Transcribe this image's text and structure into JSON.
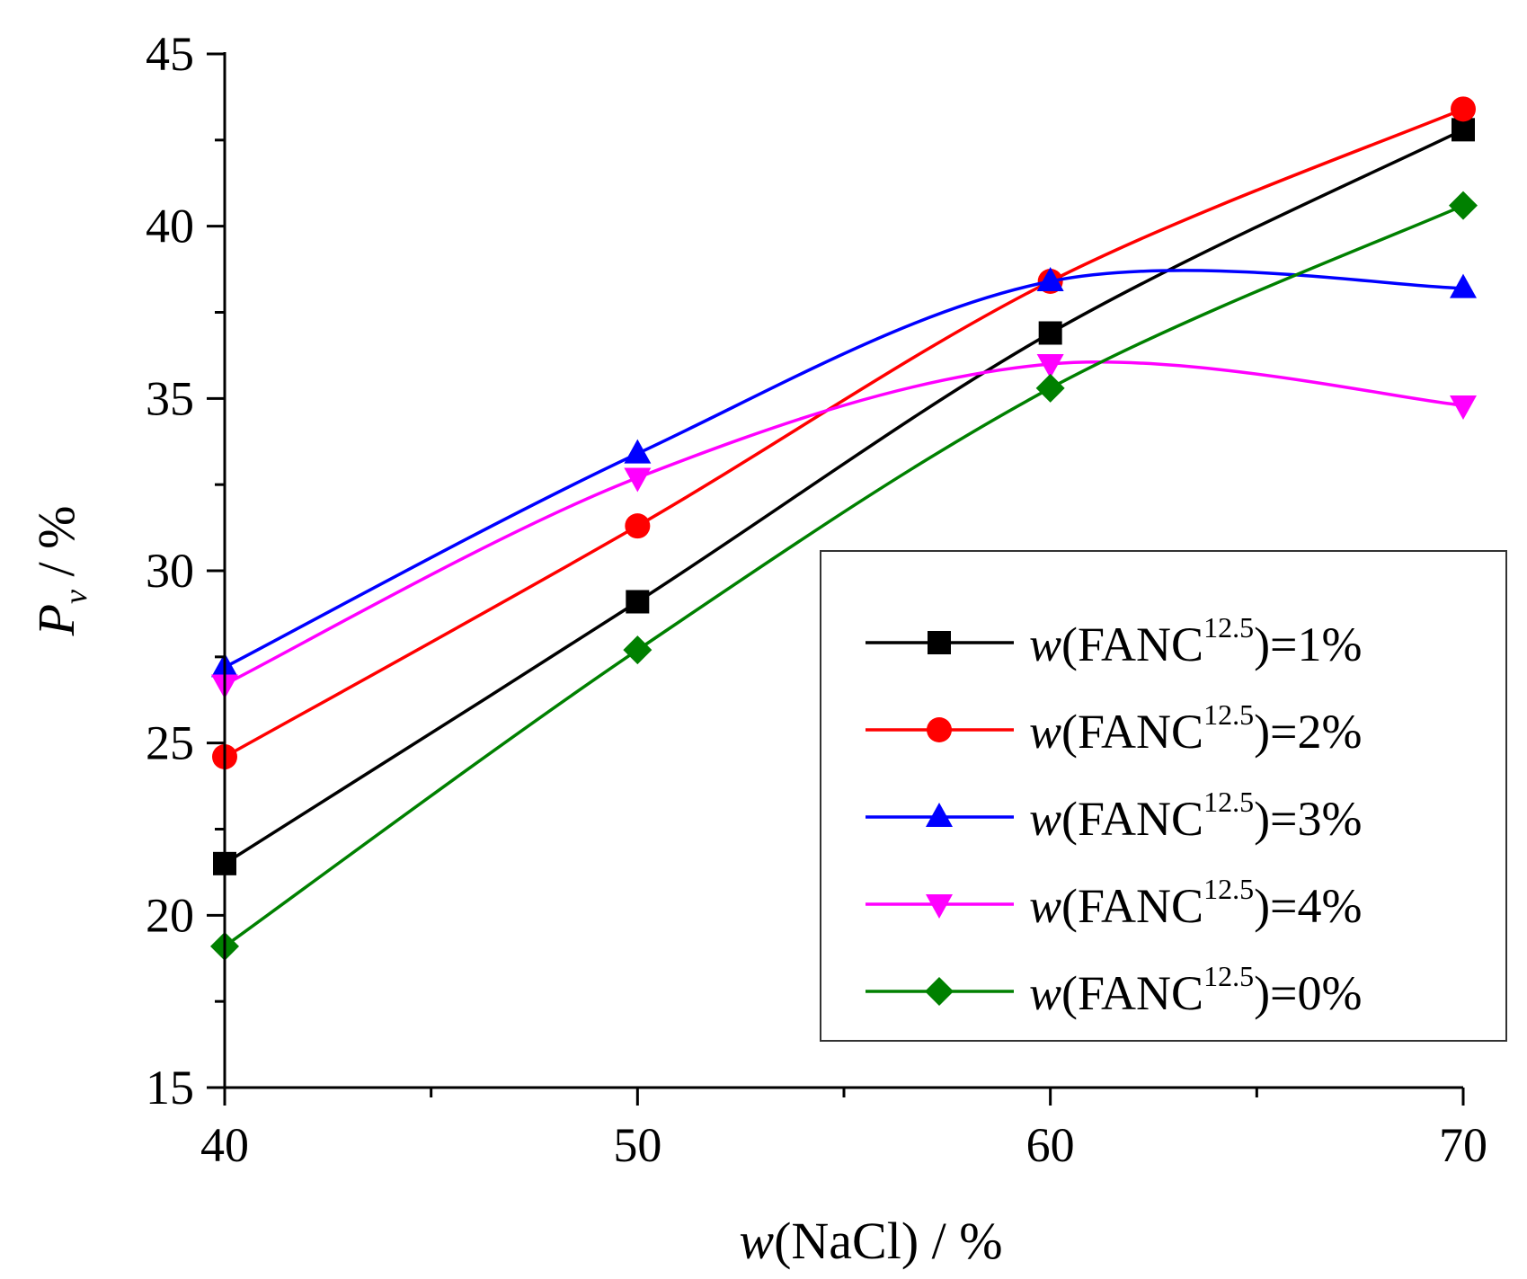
{
  "chart_data": {
    "type": "line",
    "title": "",
    "xlabel": {
      "italic": "w",
      "rest": "(NaCl) / %"
    },
    "ylabel": {
      "italic": "P",
      "sub": "v",
      "rest": " / %"
    },
    "xlim": [
      40,
      70
    ],
    "ylim": [
      15,
      45
    ],
    "x_ticks": [
      40,
      50,
      60,
      70
    ],
    "x_tick_labels": [
      "40",
      "50",
      "60",
      "70"
    ],
    "y_ticks": [
      15,
      20,
      25,
      30,
      35,
      40,
      45
    ],
    "y_tick_labels": [
      "15",
      "20",
      "25",
      "30",
      "35",
      "40",
      "45"
    ],
    "grid": false,
    "legend_position": "bottom-right",
    "x": [
      40,
      50,
      60,
      70
    ],
    "series": [
      {
        "name": "w(FANC12.5)=1%",
        "legend": {
          "italic": "w",
          "pre": "(FANC",
          "sup": "12.5",
          "post": ")=1%"
        },
        "color": "#000000",
        "marker": "square",
        "values": [
          21.5,
          29.1,
          36.9,
          42.8
        ]
      },
      {
        "name": "w(FANC12.5)=2%",
        "legend": {
          "italic": "w",
          "pre": "(FANC",
          "sup": "12.5",
          "post": ")=2%"
        },
        "color": "#ff0000",
        "marker": "circle",
        "values": [
          24.6,
          31.3,
          38.4,
          43.4
        ]
      },
      {
        "name": "w(FANC12.5)=3%",
        "legend": {
          "italic": "w",
          "pre": "(FANC",
          "sup": "12.5",
          "post": ")=3%"
        },
        "color": "#0000ff",
        "marker": "triangle-up",
        "values": [
          27.2,
          33.4,
          38.4,
          38.2
        ]
      },
      {
        "name": "w(FANC12.5)=4%",
        "legend": {
          "italic": "w",
          "pre": "(FANC",
          "sup": "12.5",
          "post": ")=4%"
        },
        "color": "#ff00ff",
        "marker": "triangle-down",
        "values": [
          26.7,
          32.7,
          36.0,
          34.8
        ]
      },
      {
        "name": "w(FANC12.5)=0%",
        "legend": {
          "italic": "w",
          "pre": "(FANC",
          "sup": "12.5",
          "post": ")=0%"
        },
        "color": "#008000",
        "marker": "diamond",
        "values": [
          19.1,
          27.7,
          35.3,
          40.6
        ]
      }
    ]
  }
}
